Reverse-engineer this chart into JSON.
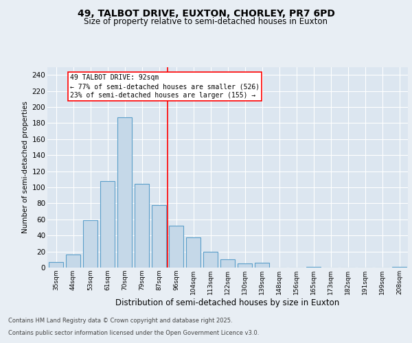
{
  "title1": "49, TALBOT DRIVE, EUXTON, CHORLEY, PR7 6PD",
  "title2": "Size of property relative to semi-detached houses in Euxton",
  "xlabel": "Distribution of semi-detached houses by size in Euxton",
  "ylabel": "Number of semi-detached properties",
  "categories": [
    "35sqm",
    "44sqm",
    "53sqm",
    "61sqm",
    "70sqm",
    "79sqm",
    "87sqm",
    "96sqm",
    "104sqm",
    "113sqm",
    "122sqm",
    "130sqm",
    "139sqm",
    "148sqm",
    "156sqm",
    "165sqm",
    "173sqm",
    "182sqm",
    "191sqm",
    "199sqm",
    "208sqm"
  ],
  "values": [
    7,
    16,
    59,
    108,
    187,
    104,
    78,
    52,
    38,
    20,
    10,
    5,
    6,
    0,
    0,
    1,
    0,
    0,
    0,
    0,
    1
  ],
  "bar_color": "#c5d8e8",
  "bar_edge_color": "#5a9ec9",
  "vline_pos": 6.5,
  "annotation_line1": "49 TALBOT DRIVE: 92sqm",
  "annotation_line2": "← 77% of semi-detached houses are smaller (526)",
  "annotation_line3": "23% of semi-detached houses are larger (155) →",
  "box_color": "#cc0000",
  "ylim": [
    0,
    250
  ],
  "yticks": [
    0,
    20,
    40,
    60,
    80,
    100,
    120,
    140,
    160,
    180,
    200,
    220,
    240
  ],
  "footnote1": "Contains HM Land Registry data © Crown copyright and database right 2025.",
  "footnote2": "Contains public sector information licensed under the Open Government Licence v3.0.",
  "bg_color": "#e8eef4",
  "plot_bg_color": "#dce6f0",
  "title1_fontsize": 10,
  "title2_fontsize": 8.5,
  "ylabel_fontsize": 7.5,
  "xlabel_fontsize": 8.5,
  "ytick_fontsize": 7.5,
  "xtick_fontsize": 6.5,
  "annot_fontsize": 7,
  "footnote_fontsize": 6
}
